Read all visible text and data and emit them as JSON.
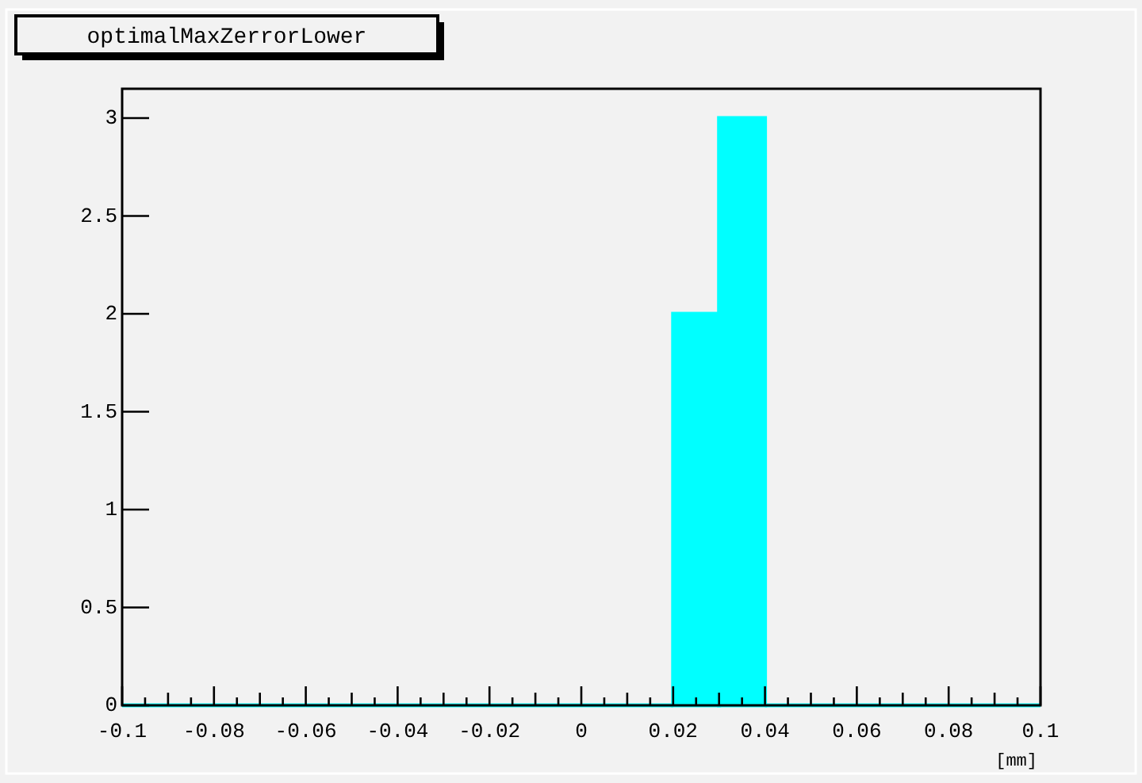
{
  "chart_data": {
    "type": "histogram",
    "title": "optimalMaxZerrorLower",
    "xlabel": "[mm]",
    "bins": [
      -0.1,
      -0.09,
      -0.08,
      -0.07,
      -0.06,
      -0.05,
      -0.04,
      -0.03,
      -0.02,
      -0.01,
      0,
      0.01,
      0.02,
      0.03,
      0.04,
      0.05,
      0.06,
      0.07,
      0.08,
      0.09,
      0.1
    ],
    "values": [
      0,
      0,
      0,
      0,
      0,
      0,
      0,
      0,
      0,
      0,
      0,
      0,
      2,
      3,
      0,
      0,
      0,
      0,
      0,
      0
    ],
    "color": "#00ffff",
    "xlim": [
      -0.1,
      0.1
    ],
    "ylim": [
      0,
      3.15
    ],
    "xticks": [
      -0.1,
      {
        "value": -0.095,
        "label": null
      },
      {
        "value": -0.09,
        "label": null
      },
      {
        "value": -0.085,
        "label": null
      },
      -0.08,
      {
        "value": -0.075,
        "label": null
      },
      {
        "value": -0.07,
        "label": null
      },
      {
        "value": -0.065,
        "label": null
      },
      -0.06,
      {
        "value": -0.055,
        "label": null
      },
      {
        "value": -0.05,
        "label": null
      },
      {
        "value": -0.045,
        "label": null
      },
      -0.04,
      {
        "value": -0.035,
        "label": null
      },
      {
        "value": -0.03,
        "label": null
      },
      {
        "value": -0.025,
        "label": null
      },
      -0.02,
      {
        "value": -0.015,
        "label": null
      },
      {
        "value": -0.01,
        "label": null
      },
      {
        "value": -0.005,
        "label": null
      },
      0,
      {
        "value": 0.005,
        "label": null
      },
      {
        "value": 0.01,
        "label": null
      },
      {
        "value": 0.015,
        "label": null
      },
      0.02,
      {
        "value": 0.025,
        "label": null
      },
      {
        "value": 0.03,
        "label": null
      },
      {
        "value": 0.035,
        "label": null
      },
      0.04,
      {
        "value": 0.045,
        "label": null
      },
      {
        "value": 0.05,
        "label": null
      },
      {
        "value": 0.055,
        "label": null
      },
      0.06,
      {
        "value": 0.065,
        "label": null
      },
      {
        "value": 0.07,
        "label": null
      },
      {
        "value": 0.075,
        "label": null
      },
      0.08,
      {
        "value": 0.085,
        "label": null
      },
      {
        "value": 0.09,
        "label": null
      },
      {
        "value": 0.095,
        "label": null
      },
      0.1
    ],
    "yticks": [
      0,
      0.5,
      1,
      1.5,
      2,
      2.5,
      3
    ]
  }
}
